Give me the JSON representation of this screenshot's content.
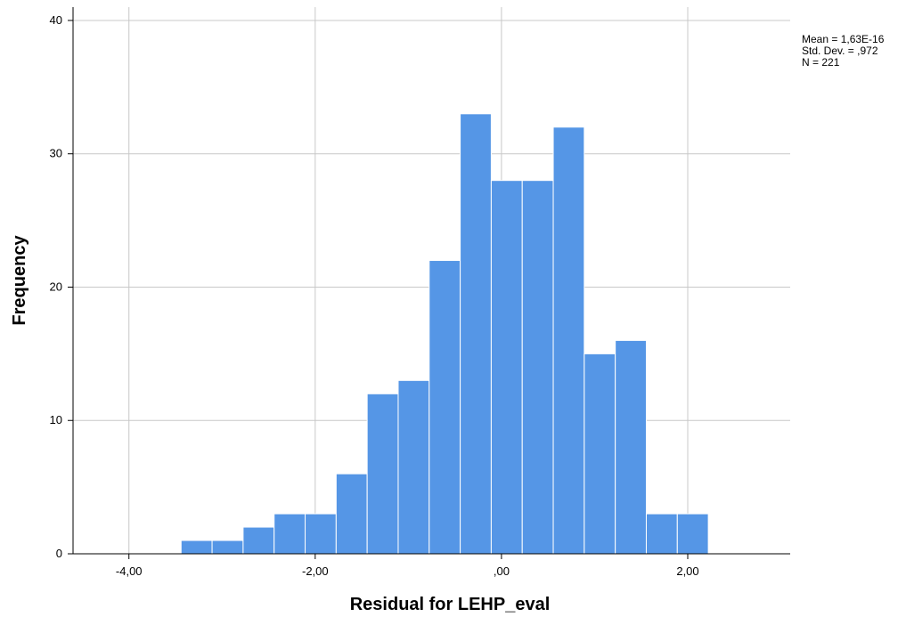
{
  "chart_data": {
    "type": "bar",
    "subtype": "histogram",
    "title": "",
    "xlabel": "Residual for LEHP_eval",
    "ylabel": "Frequency",
    "xlim": [
      -4.6,
      3.1
    ],
    "ylim": [
      0,
      41
    ],
    "bin_width": 0.333,
    "bins": [
      {
        "start": -3.44,
        "end": -3.107,
        "count": 1
      },
      {
        "start": -3.107,
        "end": -2.774,
        "count": 1
      },
      {
        "start": -2.774,
        "end": -2.441,
        "count": 2
      },
      {
        "start": -2.441,
        "end": -2.108,
        "count": 3
      },
      {
        "start": -2.108,
        "end": -1.775,
        "count": 3
      },
      {
        "start": -1.775,
        "end": -1.442,
        "count": 6
      },
      {
        "start": -1.442,
        "end": -1.109,
        "count": 12
      },
      {
        "start": -1.109,
        "end": -0.776,
        "count": 13
      },
      {
        "start": -0.776,
        "end": -0.443,
        "count": 22
      },
      {
        "start": -0.443,
        "end": -0.11,
        "count": 33
      },
      {
        "start": -0.11,
        "end": 0.223,
        "count": 28
      },
      {
        "start": 0.223,
        "end": 0.556,
        "count": 28
      },
      {
        "start": 0.556,
        "end": 0.889,
        "count": 32
      },
      {
        "start": 0.889,
        "end": 1.222,
        "count": 15
      },
      {
        "start": 1.222,
        "end": 1.555,
        "count": 16
      },
      {
        "start": 1.555,
        "end": 1.888,
        "count": 3
      },
      {
        "start": 1.888,
        "end": 2.221,
        "count": 3
      }
    ],
    "x_ticks": [
      {
        "value": -4,
        "label": "-4,00"
      },
      {
        "value": -2,
        "label": "-2,00"
      },
      {
        "value": 0,
        "label": ",00"
      },
      {
        "value": 2,
        "label": "2,00"
      }
    ],
    "y_ticks": [
      {
        "value": 0,
        "label": "0"
      },
      {
        "value": 10,
        "label": "10"
      },
      {
        "value": 20,
        "label": "20"
      },
      {
        "value": 30,
        "label": "30"
      },
      {
        "value": 40,
        "label": "40"
      }
    ],
    "grid": true,
    "legend": "none",
    "stats": {
      "mean": "Mean = 1,63E-16",
      "std_dev": "Std. Dev. = ,972",
      "n": "N = 221"
    },
    "colors": {
      "bar_fill": "#5596E6",
      "bar_stroke": "#FFFFFF",
      "grid": "#C8C8C8",
      "axis": "#000000",
      "background": "#FFFFFF"
    }
  }
}
